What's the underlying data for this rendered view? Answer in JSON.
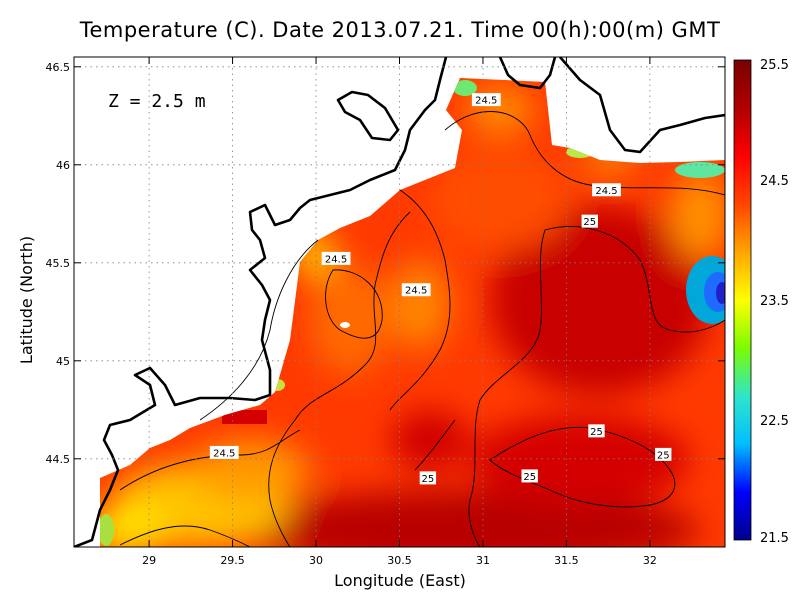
{
  "chart_data": {
    "type": "heatmap",
    "title": "Temperature (C). Date 2013.07.21. Time 00(h):00(m) GMT",
    "xlabel": "Longitude (East)",
    "ylabel": "Latitude (North)",
    "xlim": [
      28.55,
      32.45
    ],
    "ylim": [
      44.05,
      46.55
    ],
    "x_ticks": [
      29,
      29.5,
      30,
      30.5,
      31,
      31.5,
      32
    ],
    "x_tick_labels": [
      "29",
      "29.5",
      "30",
      "30.5",
      "31",
      "31.5",
      "32"
    ],
    "y_ticks": [
      44.5,
      45,
      45.5,
      46,
      46.5
    ],
    "y_tick_labels": [
      "44.5",
      "45",
      "45.5",
      "46",
      "46.5"
    ],
    "grid": true,
    "annotation": "Z = 2.5 m",
    "colorbar": {
      "min": 21.5,
      "max": 25.5,
      "tick_values": [
        21.5,
        22.5,
        23.5,
        24.5,
        25.5
      ],
      "tick_labels": [
        "21.5",
        "22.5",
        "23.5",
        "24.5",
        "25.5"
      ],
      "colors": [
        "#00008b",
        "#0000ff",
        "#00bfff",
        "#2ee6c8",
        "#7cfc00",
        "#ffff00",
        "#ffa500",
        "#ff4500",
        "#ff0000",
        "#b00000",
        "#7a0000"
      ]
    },
    "contour_labels": [
      {
        "text": "24.5",
        "lon": 31.02,
        "lat": 46.33
      },
      {
        "text": "24.5",
        "lon": 31.74,
        "lat": 45.87
      },
      {
        "text": "25",
        "lon": 31.64,
        "lat": 45.71
      },
      {
        "text": "24.5",
        "lon": 30.12,
        "lat": 45.52
      },
      {
        "text": "24.5",
        "lon": 30.6,
        "lat": 45.36
      },
      {
        "text": "24.5",
        "lon": 29.45,
        "lat": 44.53
      },
      {
        "text": "25",
        "lon": 31.68,
        "lat": 44.64
      },
      {
        "text": "25",
        "lon": 32.08,
        "lat": 44.52
      },
      {
        "text": "25",
        "lon": 31.28,
        "lat": 44.41
      },
      {
        "text": "25",
        "lon": 30.67,
        "lat": 44.4
      }
    ]
  }
}
